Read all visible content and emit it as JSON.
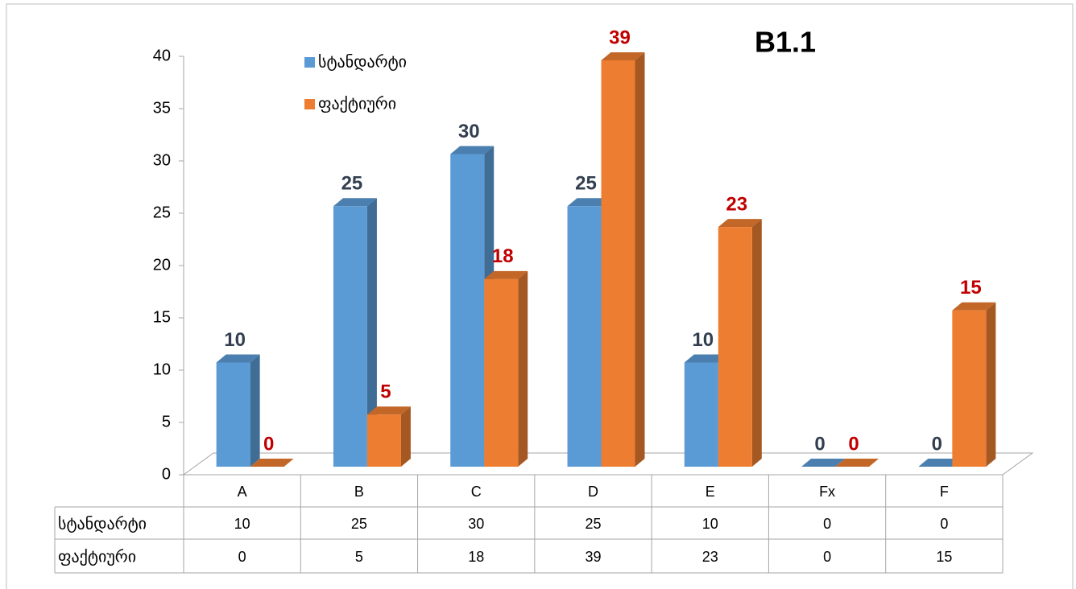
{
  "chart_data": {
    "type": "bar3d",
    "title": "B1.1",
    "categories": [
      "A",
      "B",
      "C",
      "D",
      "E",
      "Fx",
      "F"
    ],
    "series": [
      {
        "name": "სტანდარტი",
        "color": "#5b9bd5",
        "label_color": "#333f50",
        "values": [
          10,
          25,
          30,
          25,
          10,
          0,
          0
        ]
      },
      {
        "name": "ფაქტიური",
        "color": "#ed7d31",
        "label_color": "#c00000",
        "values": [
          0,
          5,
          18,
          39,
          23,
          0,
          15
        ]
      }
    ],
    "ylim": [
      0,
      40
    ],
    "yticks": [
      0,
      5,
      10,
      15,
      20,
      25,
      30,
      35,
      40
    ],
    "data_table": true
  }
}
